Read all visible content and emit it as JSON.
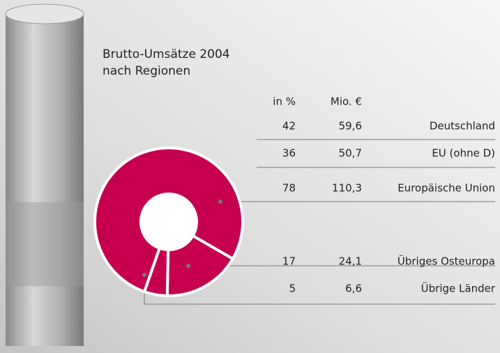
{
  "chart_data": {
    "type": "pie",
    "donut": true,
    "title": "Brutto-Umsätze 2004 nach Regionen",
    "color": "#c6004f",
    "categories": [
      "Europäische Union",
      "Übriges Osteuropa",
      "Übrige Länder"
    ],
    "series": [
      {
        "name": "in %",
        "values": [
          78,
          17,
          5
        ]
      },
      {
        "name": "Mio. €",
        "values": [
          110.3,
          24.1,
          6.6
        ],
        "value_labels": [
          "110,3",
          "24,1",
          "6,6"
        ]
      }
    ],
    "breakdown": {
      "categories": [
        "Deutschland",
        "EU (ohne D)"
      ],
      "series": [
        {
          "values": [
            42,
            36
          ]
        },
        {
          "values": [
            59.6,
            50.7
          ],
          "value_labels": [
            "59,6",
            "50,7"
          ]
        }
      ]
    }
  }
}
